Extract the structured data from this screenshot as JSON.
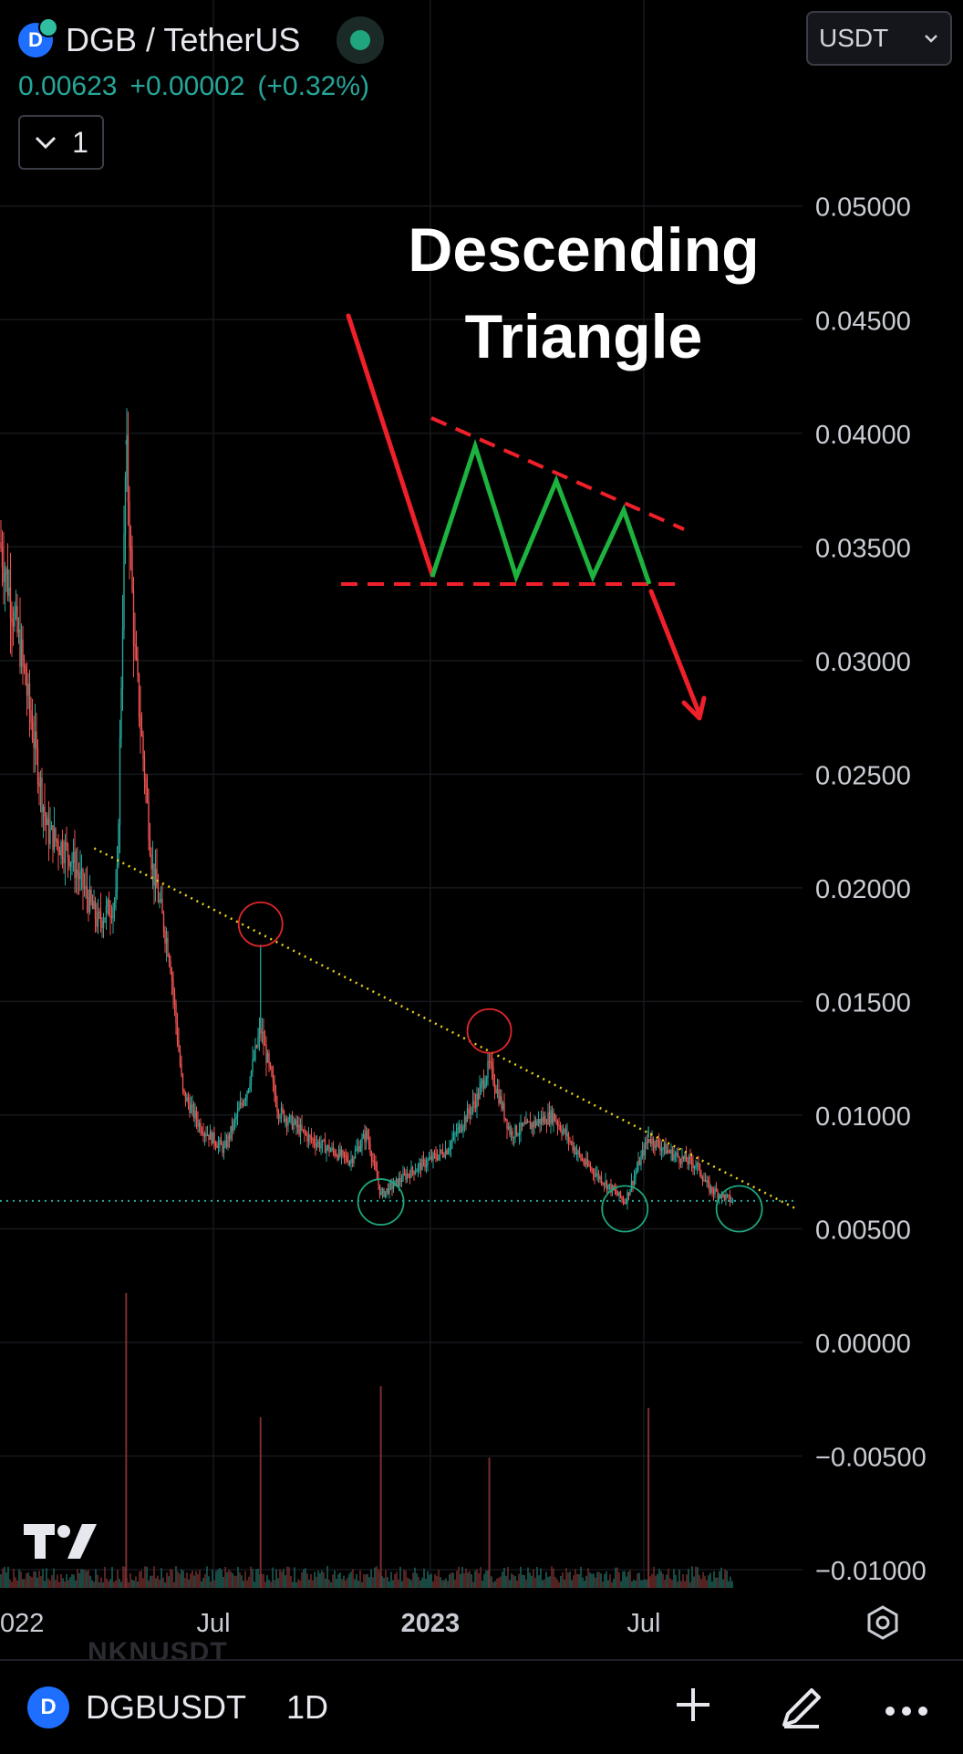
{
  "header": {
    "pair_title": "DGB / TetherUS",
    "last_price": "0.00623",
    "change_abs": "+0.00002",
    "change_pct": "(+0.32%)",
    "interval_count": "1",
    "currency": "USDT"
  },
  "bottom_bar": {
    "ticker": "DGBUSDT",
    "timeframe": "1D",
    "ghost_text": "NKNUSDT"
  },
  "colors": {
    "background": "#000000",
    "up": "#26a69a",
    "down": "#ef5350",
    "price_text": "#26a69a",
    "trendline": "#e8d21d",
    "pattern_red": "#f0202b",
    "pattern_green": "#1db33e"
  },
  "chart_data": {
    "type": "line",
    "title": "",
    "subtitle": "",
    "xlabel": "",
    "ylabel": "",
    "x_tick_labels": [
      "022",
      "Jul",
      "2023",
      "Jul"
    ],
    "y_tick_labels": [
      "0.05000",
      "0.04500",
      "0.04000",
      "0.03500",
      "0.03000",
      "0.02500",
      "0.02000",
      "0.01500",
      "0.01000",
      "0.00500",
      "0.00000",
      "−0.00500",
      "−0.01000"
    ],
    "ylim": [
      -0.0102,
      0.0528
    ],
    "grid": true,
    "series": [
      {
        "values": [
          [
            "2022-01-01",
            0.0352
          ],
          [
            "2022-01-20",
            0.03
          ],
          [
            "2022-02-10",
            0.0225
          ],
          [
            "2022-03-01",
            0.0215
          ],
          [
            "2022-03-25",
            0.0185
          ],
          [
            "2022-04-10",
            0.0195
          ],
          [
            "2022-04-18",
            0.0395
          ],
          [
            "2022-04-25",
            0.0305
          ],
          [
            "2022-05-10",
            0.021
          ],
          [
            "2022-05-25",
            0.017
          ],
          [
            "2022-06-05",
            0.011
          ],
          [
            "2022-06-20",
            0.0095
          ],
          [
            "2022-07-10",
            0.0085
          ],
          [
            "2022-07-30",
            0.0112
          ],
          [
            "2022-08-10",
            0.0138
          ],
          [
            "2022-08-25",
            0.0102
          ],
          [
            "2022-09-20",
            0.009
          ],
          [
            "2022-10-25",
            0.008
          ],
          [
            "2022-11-08",
            0.0092
          ],
          [
            "2022-11-20",
            0.0065
          ],
          [
            "2022-12-15",
            0.0075
          ],
          [
            "2023-01-15",
            0.0085
          ],
          [
            "2023-02-10",
            0.0108
          ],
          [
            "2023-02-20",
            0.0122
          ],
          [
            "2023-03-10",
            0.0092
          ],
          [
            "2023-04-15",
            0.01
          ],
          [
            "2023-05-10",
            0.008
          ],
          [
            "2023-06-15",
            0.0062
          ],
          [
            "2023-07-05",
            0.009
          ],
          [
            "2023-07-25",
            0.0083
          ],
          [
            "2023-08-15",
            0.0078
          ],
          [
            "2023-08-25",
            0.0068
          ],
          [
            "2023-09-15",
            0.0062
          ]
        ]
      }
    ],
    "volume": [
      [
        "2022-04-18",
        0.95
      ],
      [
        "2022-08-10",
        0.55
      ],
      [
        "2022-11-20",
        0.65
      ],
      [
        "2023-02-20",
        0.42
      ],
      [
        "2023-07-05",
        0.58
      ]
    ],
    "trendline_resistance": [
      [
        "2022-03-25",
        0.0215
      ],
      [
        "2023-11-05",
        0.0063
      ]
    ],
    "support_level": 0.00623,
    "highlighted_highs": [
      [
        "2022-08-10",
        0.0184
      ],
      [
        "2023-02-20",
        0.0137
      ]
    ],
    "highlighted_lows": [
      [
        "2022-11-20",
        0.0061
      ],
      [
        "2023-06-15",
        0.0058
      ],
      [
        "2023-09-20",
        0.0058
      ]
    ],
    "annotations": [
      {
        "text_lines": [
          "Descending",
          "Triangle"
        ]
      }
    ]
  }
}
